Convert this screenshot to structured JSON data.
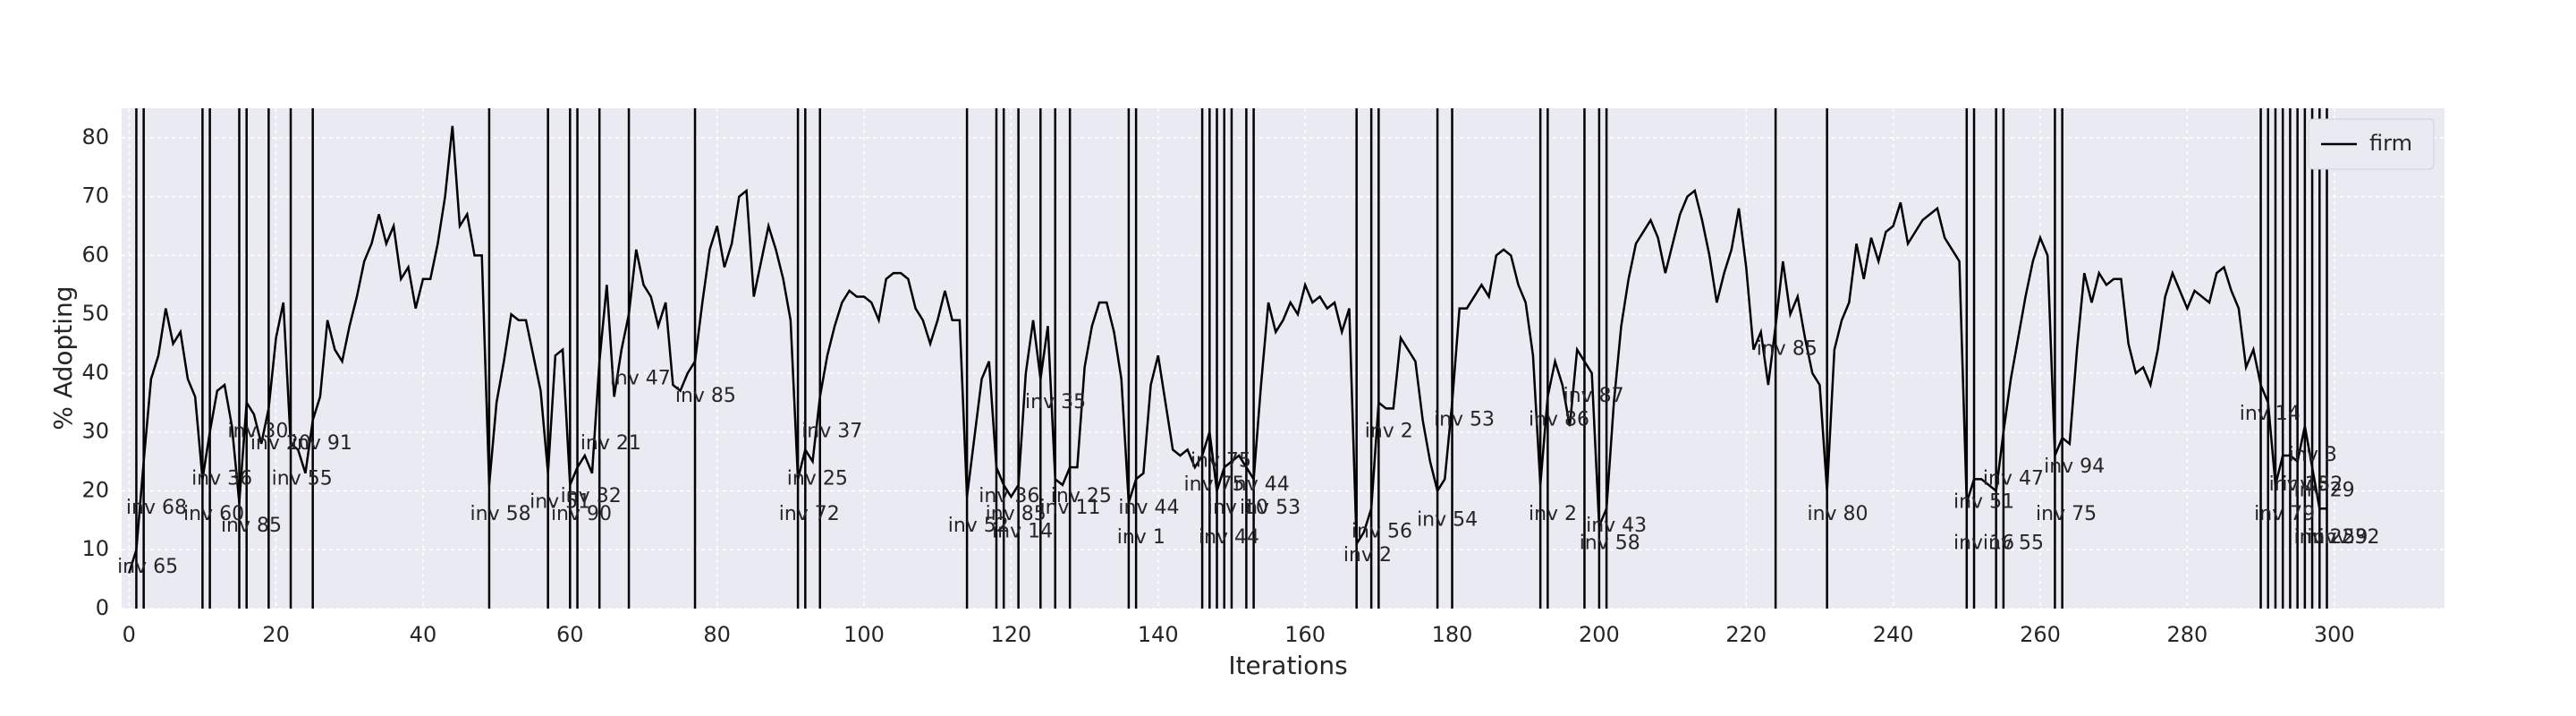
{
  "chart_data": {
    "type": "line",
    "xlabel": "Iterations",
    "ylabel": "% Adopting",
    "xlim": [
      -1,
      315
    ],
    "ylim": [
      0,
      85
    ],
    "xticks": [
      0,
      20,
      40,
      60,
      80,
      100,
      120,
      140,
      160,
      180,
      200,
      220,
      240,
      260,
      280,
      300
    ],
    "yticks": [
      0,
      10,
      20,
      30,
      40,
      50,
      60,
      70,
      80
    ],
    "grid": true,
    "legend": "upper right",
    "x": [
      0,
      1,
      2,
      3,
      4,
      5,
      6,
      7,
      8,
      9,
      10,
      11,
      12,
      13,
      14,
      15,
      16,
      17,
      18,
      19,
      20,
      21,
      22,
      23,
      24,
      25,
      26,
      27,
      28,
      29,
      30,
      31,
      32,
      33,
      34,
      35,
      36,
      37,
      38,
      39,
      40,
      41,
      42,
      43,
      44,
      45,
      46,
      47,
      48,
      49,
      50,
      51,
      52,
      53,
      54,
      55,
      56,
      57,
      58,
      59,
      60,
      61,
      62,
      63,
      64,
      65,
      66,
      67,
      68,
      69,
      70,
      71,
      72,
      73,
      74,
      75,
      76,
      77,
      78,
      79,
      80,
      81,
      82,
      83,
      84,
      85,
      86,
      87,
      88,
      89,
      90,
      91,
      92,
      93,
      94,
      95,
      96,
      97,
      98,
      99,
      100,
      101,
      102,
      103,
      104,
      105,
      106,
      107,
      108,
      109,
      110,
      111,
      112,
      113,
      114,
      115,
      116,
      117,
      118,
      119,
      120,
      121,
      122,
      123,
      124,
      125,
      126,
      127,
      128,
      129,
      130,
      131,
      132,
      133,
      134,
      135,
      136,
      137,
      138,
      139,
      140,
      141,
      142,
      143,
      144,
      145,
      146,
      147,
      148,
      149,
      150,
      151,
      152,
      153,
      154,
      155,
      156,
      157,
      158,
      159,
      160,
      161,
      162,
      163,
      164,
      165,
      166,
      167,
      168,
      169,
      170,
      171,
      172,
      173,
      174,
      175,
      176,
      177,
      178,
      179,
      180,
      181,
      182,
      183,
      184,
      185,
      186,
      187,
      188,
      189,
      190,
      191,
      192,
      193,
      194,
      195,
      196,
      197,
      198,
      199,
      200,
      201,
      202,
      203,
      204,
      205,
      206,
      207,
      208,
      209,
      210,
      211,
      212,
      213,
      214,
      215,
      216,
      217,
      218,
      219,
      220,
      221,
      222,
      223,
      224,
      225,
      226,
      227,
      228,
      229,
      230,
      231,
      232,
      233,
      234,
      235,
      236,
      237,
      238,
      239,
      240,
      241,
      242,
      243,
      244,
      245,
      246,
      247,
      248,
      249,
      250,
      251,
      252,
      253,
      254,
      255,
      256,
      257,
      258,
      259,
      260,
      261,
      262,
      263,
      264,
      265,
      266,
      267,
      268,
      269,
      270,
      271,
      272,
      273,
      274,
      275,
      276,
      277,
      278,
      279,
      280,
      281,
      282,
      283,
      284,
      285,
      286,
      287,
      288,
      289,
      290,
      291,
      292,
      293,
      294,
      295,
      296,
      297,
      298,
      299
    ],
    "series": [
      {
        "name": "firm",
        "color": "#000000",
        "values": [
          6,
          10,
          25,
          39,
          43,
          51,
          45,
          47,
          39,
          36,
          22,
          30,
          37,
          38,
          31,
          18,
          35,
          33,
          28,
          34,
          46,
          52,
          28,
          27,
          23,
          32,
          36,
          49,
          44,
          42,
          48,
          53,
          59,
          62,
          67,
          62,
          65,
          56,
          58,
          51,
          56,
          56,
          62,
          70,
          82,
          65,
          67,
          60,
          60,
          21,
          35,
          42,
          50,
          49,
          49,
          43,
          37,
          23,
          43,
          44,
          21,
          24,
          26,
          23,
          42,
          55,
          36,
          44,
          50,
          61,
          55,
          53,
          48,
          52,
          38,
          37,
          40,
          42,
          52,
          61,
          65,
          58,
          62,
          70,
          71,
          53,
          59,
          65,
          61,
          56,
          49,
          22,
          27,
          25,
          36,
          43,
          48,
          52,
          54,
          53,
          53,
          52,
          49,
          56,
          57,
          57,
          56,
          51,
          49,
          45,
          49,
          54,
          49,
          49,
          19,
          29,
          39,
          42,
          24,
          21,
          19,
          21,
          40,
          49,
          39,
          48,
          22,
          21,
          24,
          24,
          41,
          48,
          52,
          52,
          47,
          39,
          18,
          22,
          23,
          38,
          43,
          35,
          27,
          26,
          27,
          24,
          26,
          30,
          20,
          24,
          25,
          26,
          24,
          22,
          38,
          52,
          47,
          49,
          52,
          50,
          55,
          52,
          53,
          51,
          52,
          47,
          51,
          11,
          13,
          17,
          35,
          34,
          34,
          46,
          44,
          42,
          32,
          25,
          20,
          22,
          35,
          51,
          51,
          53,
          55,
          53,
          60,
          61,
          60,
          55,
          52,
          43,
          21,
          36,
          42,
          38,
          31,
          44,
          42,
          40,
          14,
          17,
          35,
          48,
          56,
          62,
          64,
          66,
          63,
          57,
          62,
          67,
          70,
          71,
          66,
          60,
          52,
          57,
          61,
          68,
          58,
          44,
          47,
          38,
          48,
          59,
          50,
          53,
          46,
          40,
          38,
          20,
          44,
          49,
          52,
          62,
          56,
          63,
          59,
          64,
          65,
          69,
          62,
          64,
          66,
          67,
          68,
          63,
          61,
          59,
          18,
          22,
          22,
          21,
          20,
          30,
          39,
          46,
          53,
          59,
          63,
          60,
          26,
          29,
          28,
          44,
          57,
          52,
          57,
          55,
          56,
          56,
          45,
          40,
          41,
          38,
          44,
          53,
          57,
          54,
          51,
          54,
          53,
          52,
          57,
          58,
          54,
          51,
          41,
          44,
          38,
          35,
          21,
          26,
          26,
          25,
          31,
          24,
          17,
          17
        ]
      }
    ],
    "vlines": [
      1,
      2,
      10,
      11,
      15,
      16,
      19,
      22,
      25,
      49,
      57,
      60,
      61,
      64,
      68,
      77,
      91,
      92,
      94,
      114,
      118,
      119,
      121,
      124,
      126,
      128,
      136,
      137,
      146,
      147,
      148,
      149,
      150,
      152,
      153,
      167,
      169,
      170,
      178,
      180,
      192,
      193,
      198,
      200,
      201,
      224,
      231,
      250,
      251,
      254,
      255,
      262,
      263,
      290,
      291,
      292,
      293,
      294,
      295,
      296,
      297,
      298,
      299
    ],
    "annotations": [
      {
        "text": "inv 65",
        "x": -1.6,
        "y": 7
      },
      {
        "text": "inv 68",
        "x": -0.4,
        "y": 17
      },
      {
        "text": "inv 60",
        "x": 7.4,
        "y": 16
      },
      {
        "text": "inv 36",
        "x": 8.5,
        "y": 22
      },
      {
        "text": "inv 30",
        "x": 13.4,
        "y": 30
      },
      {
        "text": "inv 85",
        "x": 12.5,
        "y": 14
      },
      {
        "text": "inv 20",
        "x": 16.5,
        "y": 28
      },
      {
        "text": "inv 91",
        "x": 22.1,
        "y": 28
      },
      {
        "text": "inv 55",
        "x": 19.4,
        "y": 22
      },
      {
        "text": "inv 58",
        "x": 46.4,
        "y": 16
      },
      {
        "text": "inv 51",
        "x": 54.5,
        "y": 18
      },
      {
        "text": "inv 32",
        "x": 58.7,
        "y": 19
      },
      {
        "text": "inv 90",
        "x": 57.4,
        "y": 16
      },
      {
        "text": "inv 21",
        "x": 61.4,
        "y": 28
      },
      {
        "text": "inv 47",
        "x": 65.4,
        "y": 39
      },
      {
        "text": "inv 85",
        "x": 74.3,
        "y": 36
      },
      {
        "text": "inv 37",
        "x": 91.5,
        "y": 30
      },
      {
        "text": "inv 25",
        "x": 89.5,
        "y": 22
      },
      {
        "text": "inv 72",
        "x": 88.4,
        "y": 16
      },
      {
        "text": "inv 52",
        "x": 111.4,
        "y": 14
      },
      {
        "text": "inv 36",
        "x": 115.6,
        "y": 19
      },
      {
        "text": "inv 85",
        "x": 116.5,
        "y": 16
      },
      {
        "text": "inv 14",
        "x": 117.4,
        "y": 13
      },
      {
        "text": "inv 35",
        "x": 121.9,
        "y": 35
      },
      {
        "text": "inv 11",
        "x": 123.9,
        "y": 17
      },
      {
        "text": "inv 25",
        "x": 125.4,
        "y": 19
      },
      {
        "text": "inv 44",
        "x": 134.6,
        "y": 17
      },
      {
        "text": "inv 1",
        "x": 134.4,
        "y": 12
      },
      {
        "text": "inv 75",
        "x": 144.4,
        "y": 25
      },
      {
        "text": "inv 75",
        "x": 143.5,
        "y": 21
      },
      {
        "text": "inv 44",
        "x": 149.6,
        "y": 21
      },
      {
        "text": "inv 10",
        "x": 146.7,
        "y": 17
      },
      {
        "text": "inv 44",
        "x": 145.5,
        "y": 12
      },
      {
        "text": "inv 53",
        "x": 151.1,
        "y": 17
      },
      {
        "text": "inv 56",
        "x": 166.3,
        "y": 13
      },
      {
        "text": "inv 2",
        "x": 165.2,
        "y": 9
      },
      {
        "text": "inv 2",
        "x": 168.1,
        "y": 30
      },
      {
        "text": "inv 54",
        "x": 175.2,
        "y": 15
      },
      {
        "text": "inv 53",
        "x": 177.5,
        "y": 32
      },
      {
        "text": "inv 86",
        "x": 190.4,
        "y": 32
      },
      {
        "text": "inv 87",
        "x": 195.1,
        "y": 36
      },
      {
        "text": "inv 2",
        "x": 190.4,
        "y": 16
      },
      {
        "text": "inv 43",
        "x": 198.2,
        "y": 14
      },
      {
        "text": "inv 58",
        "x": 197.3,
        "y": 11
      },
      {
        "text": "inv 85",
        "x": 221.4,
        "y": 44
      },
      {
        "text": "inv 80",
        "x": 228.3,
        "y": 16
      },
      {
        "text": "inv 51",
        "x": 248.2,
        "y": 18
      },
      {
        "text": "inv 47",
        "x": 252.2,
        "y": 22
      },
      {
        "text": "inv 16",
        "x": 248.2,
        "y": 11
      },
      {
        "text": "inv 55",
        "x": 252.2,
        "y": 11
      },
      {
        "text": "inv 94",
        "x": 260.5,
        "y": 24
      },
      {
        "text": "inv 75",
        "x": 259.4,
        "y": 16
      },
      {
        "text": "inv 14",
        "x": 287.1,
        "y": 33
      },
      {
        "text": "inv 3",
        "x": 293.8,
        "y": 26
      },
      {
        "text": "inv 13",
        "x": 291.1,
        "y": 21
      },
      {
        "text": "inv 52",
        "x": 292.9,
        "y": 21
      },
      {
        "text": "inv 29",
        "x": 294.5,
        "y": 20
      },
      {
        "text": "inv 79",
        "x": 289.1,
        "y": 16
      },
      {
        "text": "inv 22",
        "x": 294.5,
        "y": 12
      },
      {
        "text": "inv 59",
        "x": 296.3,
        "y": 12
      },
      {
        "text": "inv 32",
        "x": 297.9,
        "y": 12
      }
    ]
  }
}
